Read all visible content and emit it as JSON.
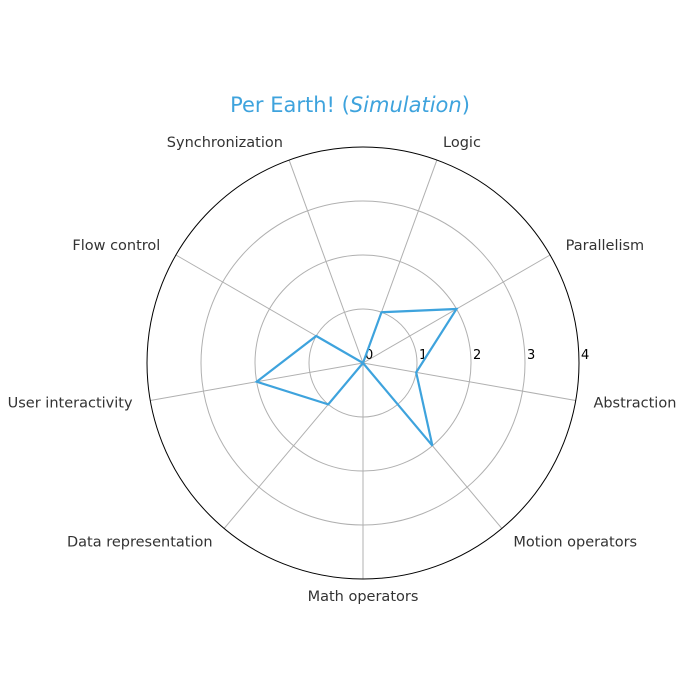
{
  "chart_data": {
    "type": "radar",
    "title": "Per Earth!",
    "title_suffix": "Simulation",
    "axes": [
      "Abstraction",
      "Parallelism",
      "Logic",
      "Synchronization",
      "Flow control",
      "User interactivity",
      "Data representation",
      "Math operators",
      "Motion operators"
    ],
    "series": [
      {
        "name": "Simulation",
        "values": [
          1,
          2,
          1,
          0,
          1,
          2,
          1,
          0,
          2
        ],
        "color": "#3ea3dd"
      }
    ],
    "rlim": [
      0,
      4
    ],
    "rticks": [
      "0",
      "1",
      "2",
      "3",
      "4"
    ],
    "grid": true
  }
}
